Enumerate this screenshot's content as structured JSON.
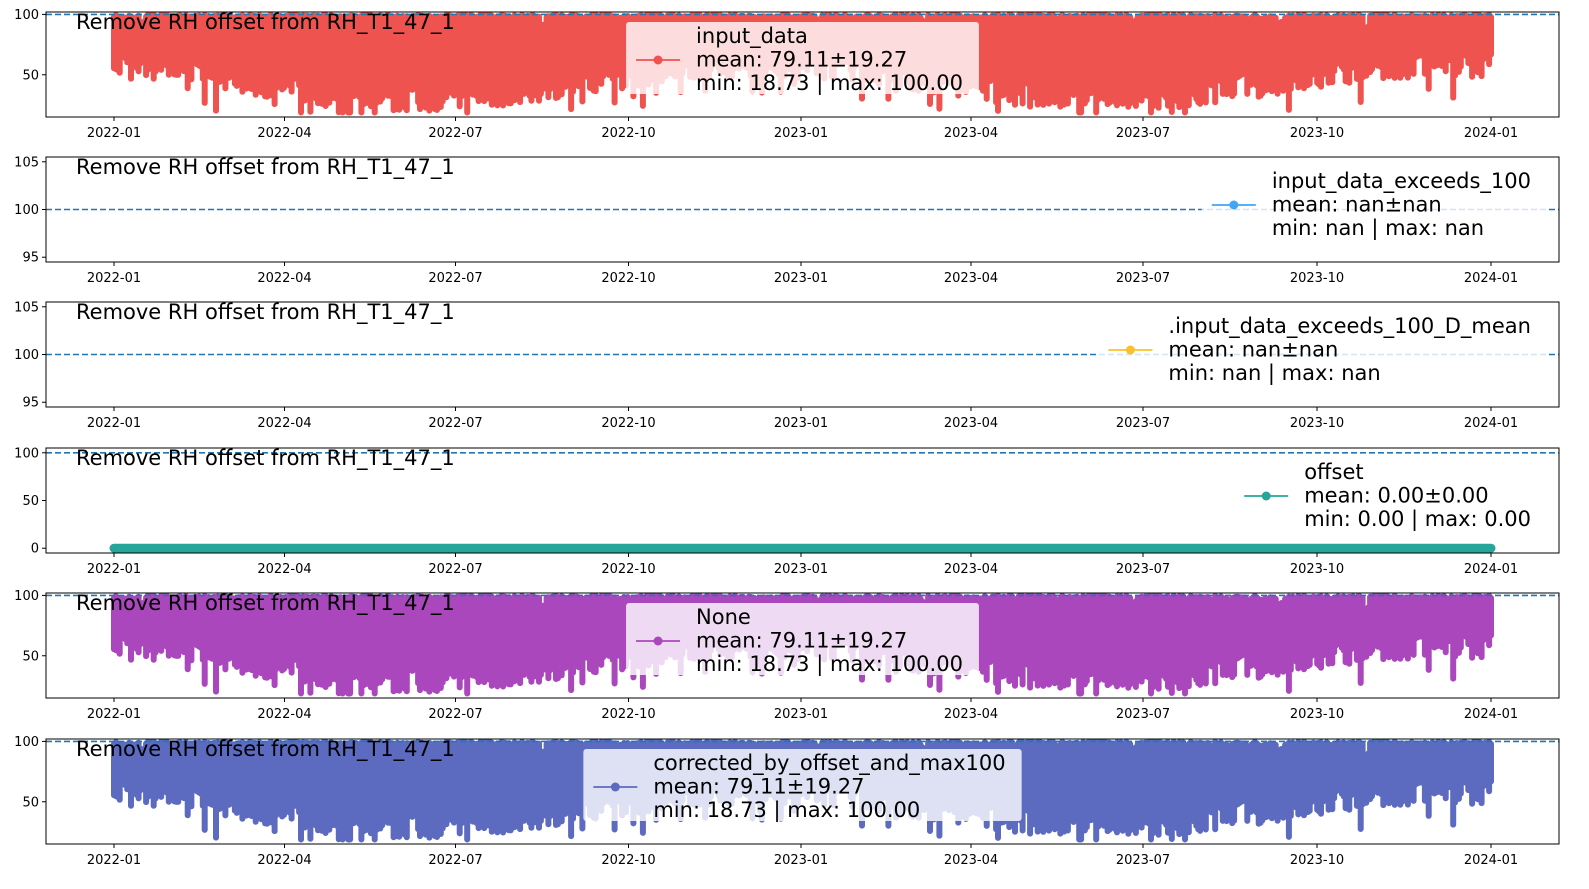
{
  "figure": {
    "x_ticks": [
      "2022-01",
      "2022-04",
      "2022-07",
      "2022-10",
      "2023-01",
      "2023-04",
      "2023-07",
      "2023-10",
      "2024-01"
    ],
    "reference_line": 100
  },
  "chart_data": [
    {
      "type": "line",
      "title": "Remove RH offset from RH_T1_47_1",
      "series": [
        {
          "name": "input_data",
          "color": "#ef5350"
        }
      ],
      "legend": {
        "name": "input_data",
        "mean": "mean: 79.11±19.27",
        "range": "min: 18.73  |  max: 100.00",
        "placement": "upper-center"
      },
      "yticks": [
        "50",
        "100"
      ],
      "ylim": [
        15,
        102
      ],
      "x_range": [
        "2022-01-01",
        "2024-01-01"
      ],
      "data_min": 18.73,
      "data_max": 100.0,
      "data_mean": 79.11
    },
    {
      "type": "line",
      "title": "Remove RH offset from RH_T1_47_1",
      "series": [
        {
          "name": "input_data_exceeds_100",
          "color": "#42a5f5"
        }
      ],
      "legend": {
        "name": "input_data_exceeds_100",
        "mean": "mean: nan±nan",
        "range": "min: nan  |  max: nan",
        "placement": "right"
      },
      "yticks": [
        "95",
        "100",
        "105"
      ],
      "ylim": [
        94.5,
        105.5
      ]
    },
    {
      "type": "line",
      "title": "Remove RH offset from RH_T1_47_1",
      "series": [
        {
          "name": ".input_data_exceeds_100_D_mean",
          "color": "#fbc02d"
        }
      ],
      "legend": {
        "name": ".input_data_exceeds_100_D_mean",
        "mean": "mean: nan±nan",
        "range": "min: nan  |  max: nan",
        "placement": "right"
      },
      "yticks": [
        "95",
        "100",
        "105"
      ],
      "ylim": [
        94.5,
        105.5
      ]
    },
    {
      "type": "line",
      "title": "Remove RH offset from RH_T1_47_1",
      "series": [
        {
          "name": "offset",
          "color": "#26a69a"
        }
      ],
      "legend": {
        "name": "offset",
        "mean": "mean: 0.00±0.00",
        "range": "min: 0.00  |  max: 0.00",
        "placement": "right"
      },
      "yticks": [
        "0",
        "50",
        "100"
      ],
      "ylim": [
        -5,
        105
      ],
      "x_range": [
        "2022-01-01",
        "2024-01-01"
      ],
      "data_min": 0.0,
      "data_max": 0.0,
      "data_mean": 0.0
    },
    {
      "type": "line",
      "title": "Remove RH offset from RH_T1_47_1",
      "series": [
        {
          "name": "None",
          "color": "#ab47bc"
        }
      ],
      "legend": {
        "name": "None",
        "mean": "mean: 79.11±19.27",
        "range": "min: 18.73  |  max: 100.00",
        "placement": "upper-center"
      },
      "yticks": [
        "50",
        "100"
      ],
      "ylim": [
        15,
        102
      ],
      "x_range": [
        "2022-01-01",
        "2024-01-01"
      ],
      "data_min": 18.73,
      "data_max": 100.0,
      "data_mean": 79.11
    },
    {
      "type": "line",
      "title": "Remove RH offset from RH_T1_47_1",
      "series": [
        {
          "name": "corrected_by_offset_and_max100",
          "color": "#5c6bc0"
        }
      ],
      "legend": {
        "name": "corrected_by_offset_and_max100",
        "mean": "mean: 79.11±19.27",
        "range": "min: 18.73  |  max: 100.00",
        "placement": "upper-center"
      },
      "yticks": [
        "50",
        "100"
      ],
      "ylim": [
        15,
        102
      ],
      "x_range": [
        "2022-01-01",
        "2024-01-01"
      ],
      "data_min": 18.73,
      "data_max": 100.0,
      "data_mean": 79.11
    }
  ]
}
